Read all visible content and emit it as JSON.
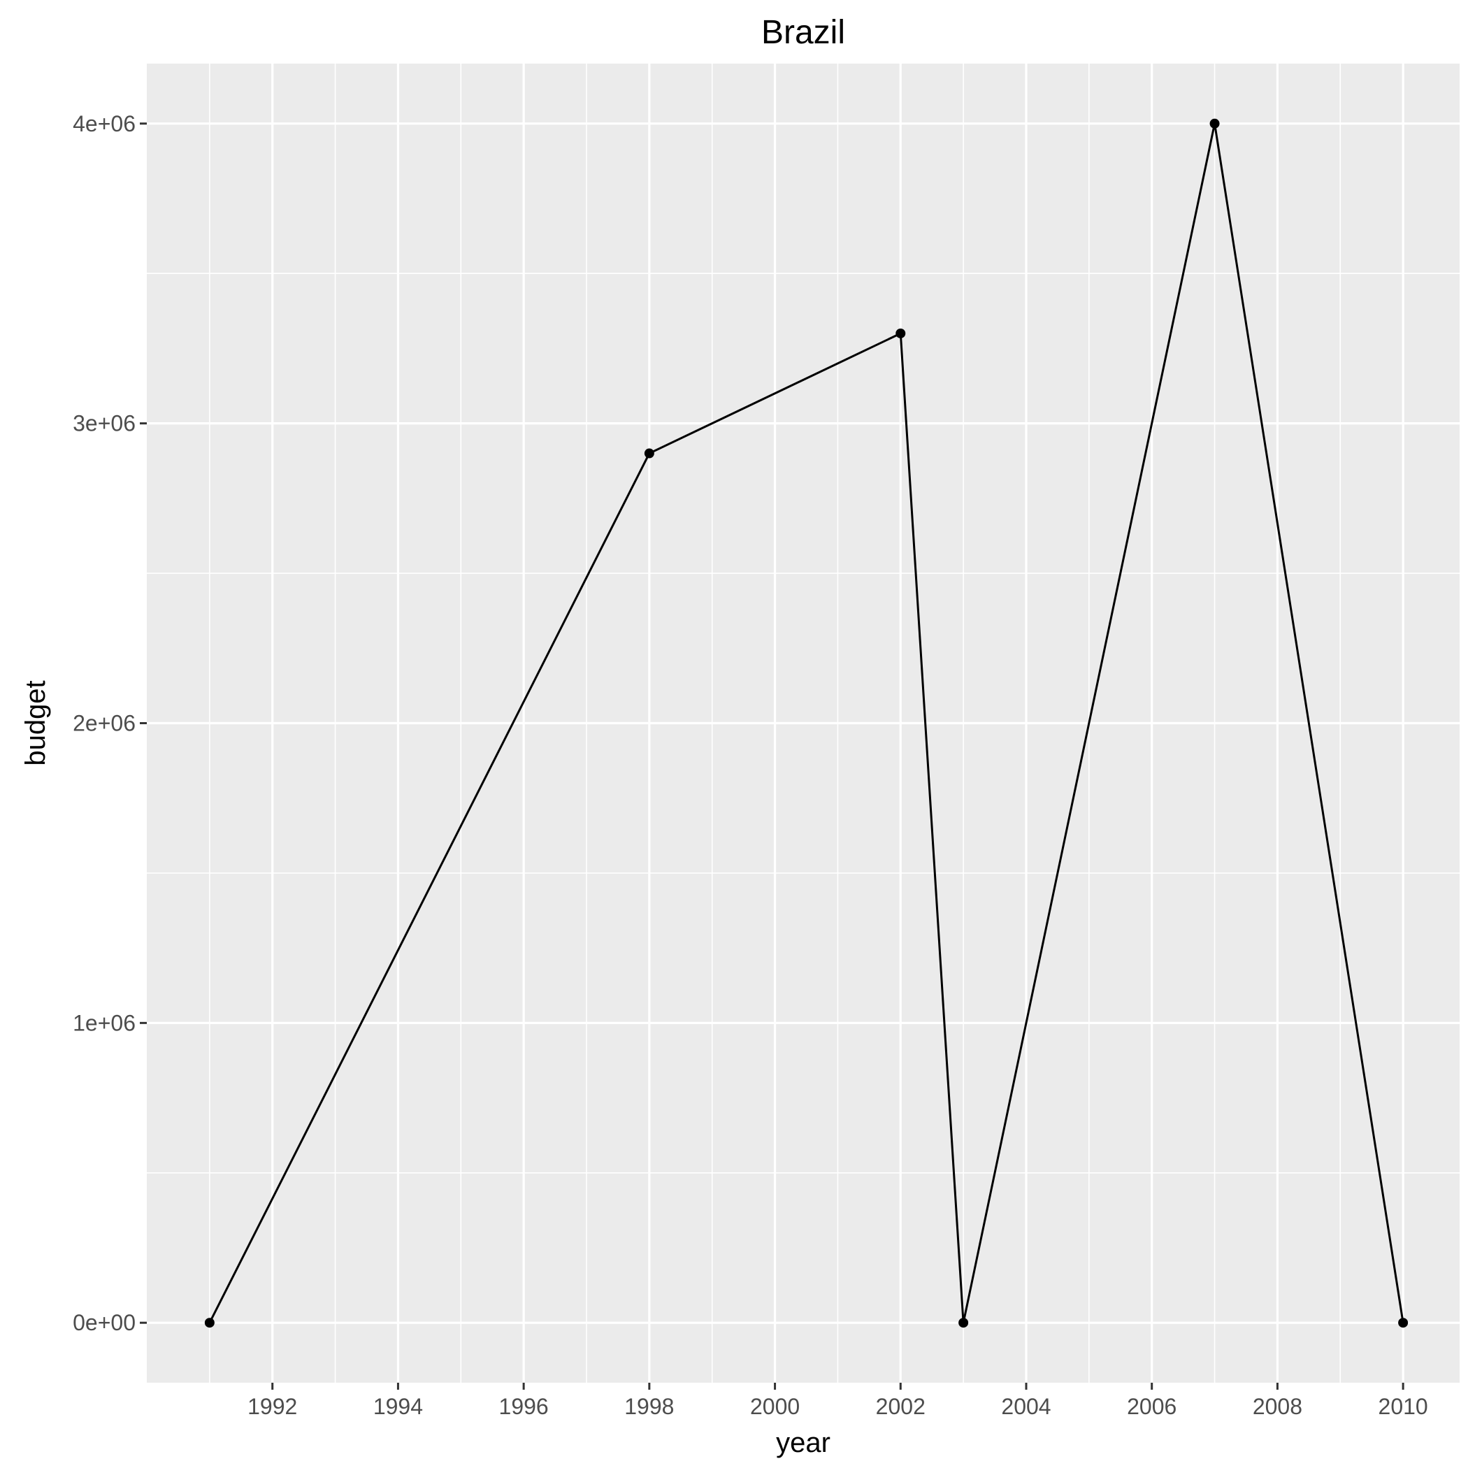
{
  "chart_data": {
    "type": "line",
    "title": "Brazil",
    "xlabel": "year",
    "ylabel": "budget",
    "x": [
      1991,
      1998,
      2002,
      2003,
      2007,
      2010
    ],
    "values": [
      0,
      2900000,
      3300000,
      0,
      4000000,
      0
    ],
    "xlim": [
      1990.0,
      2010.9
    ],
    "ylim": [
      -200000,
      4200000
    ],
    "x_ticks": [
      1992,
      1994,
      1996,
      1998,
      2000,
      2002,
      2004,
      2006,
      2008,
      2010
    ],
    "x_tick_labels": [
      "1992",
      "1994",
      "1996",
      "1998",
      "2000",
      "2002",
      "2004",
      "2006",
      "2008",
      "2010"
    ],
    "x_minor_ticks": [
      1991,
      1993,
      1995,
      1997,
      1999,
      2001,
      2003,
      2005,
      2007,
      2009
    ],
    "y_ticks": [
      0,
      1000000,
      2000000,
      3000000,
      4000000
    ],
    "y_tick_labels": [
      "0e+00",
      "1e+06",
      "2e+06",
      "3e+06",
      "4e+06"
    ],
    "y_minor_ticks": [
      500000,
      1500000,
      2500000,
      3500000
    ],
    "grid": true,
    "legend": "none",
    "colors": {
      "panel_background": "#ebebeb",
      "grid": "#ffffff",
      "series": "#000000",
      "tick_label": "#4d4d4d"
    }
  }
}
